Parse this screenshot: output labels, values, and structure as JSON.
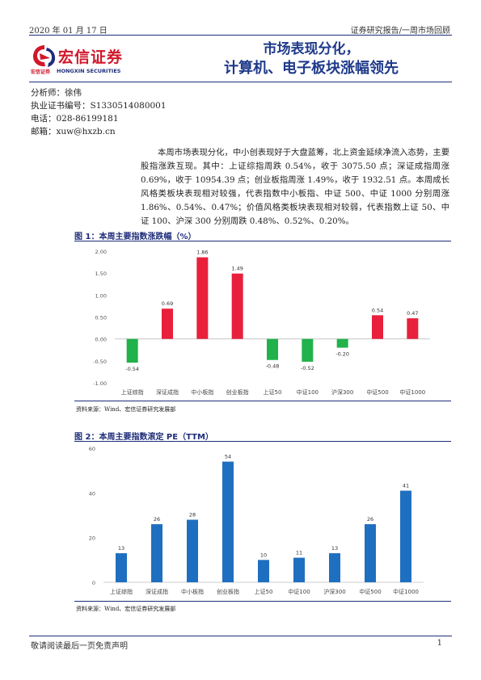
{
  "header": {
    "date": "2020 年 01 月 17 日",
    "report_type": "证券研究报告/一周市场回顾"
  },
  "logo": {
    "name_cn": "宏信证券",
    "small": "宏信证券",
    "name_en": "HONGXIN SECURITIES",
    "colors": {
      "red": "#d1182b",
      "navy": "#1f2d7a"
    }
  },
  "title": {
    "line1": "市场表现分化，",
    "line2": "计算机、电子板块涨幅领先"
  },
  "analyst": {
    "name": "分析师：徐伟",
    "license": "执业证书编号：S1330514080001",
    "phone": "电话：028-86199181",
    "email": "邮箱：xuw@hxzb.cn"
  },
  "summary": "本周市场表现分化，中小创表现好于大盘蓝筹，北上资金延续净流入态势，主要股指涨跌互现。其中：上证综指周跌 0.54%，收于 3075.50 点；深证成指周涨 0.69%，收于 10954.39 点；创业板指周涨 1.49%，收于 1932.51 点。本周成长风格类板块表现相对较强，代表指数中小板指、中证 500、中证 1000 分别周涨 1.86%、0.54%、0.47%；价值风格类板块表现相对较弱，代表指数上证 50、中证 100、沪深 300 分别周跌 0.48%、0.52%、0.20%。",
  "chart_data": [
    {
      "type": "bar",
      "title": "图 1：本周主要指数涨跌幅（%）",
      "categories": [
        "上证综指",
        "深证成指",
        "中小板指",
        "创业板指",
        "上证50",
        "中证100",
        "沪深300",
        "中证500",
        "中证1000"
      ],
      "values": [
        -0.54,
        0.69,
        1.86,
        1.49,
        -0.48,
        -0.52,
        -0.2,
        0.54,
        0.47
      ],
      "labels": [
        "-0.54",
        "0.69",
        "1.86",
        "1.49",
        "-0.48",
        "-0.52",
        "-0.20",
        "0.54",
        "0.47"
      ],
      "ylim": [
        -1.0,
        2.0
      ],
      "yticks": [
        "2.00",
        "1.50",
        "1.00",
        "0.50",
        "0.00",
        "-0.50",
        "-1.00"
      ],
      "colors": {
        "up": "#e8203b",
        "down": "#21b24b"
      },
      "source": "资料来源：Wind、宏信证券研究发展部"
    },
    {
      "type": "bar",
      "title": "图 2：本周主要指数滚定 PE（TTM）",
      "categories": [
        "上证综指",
        "深证成指",
        "中小板指",
        "创业板指",
        "上证50",
        "中证100",
        "沪深300",
        "中证500",
        "中证1000"
      ],
      "values": [
        13,
        26,
        28,
        54,
        10,
        11,
        13,
        26,
        41
      ],
      "labels": [
        "13",
        "26",
        "28",
        "54",
        "10",
        "11",
        "13",
        "26",
        "41"
      ],
      "ylim": [
        0,
        60
      ],
      "yticks": [
        "60",
        "40",
        "20",
        "0"
      ],
      "colors": {
        "bar": "#1f6fc0"
      },
      "source": "资料来源：Wind、宏信证券研究发展部"
    }
  ],
  "footer": {
    "disclaimer": "敬请阅读最后一页免责声明",
    "page": "1"
  }
}
